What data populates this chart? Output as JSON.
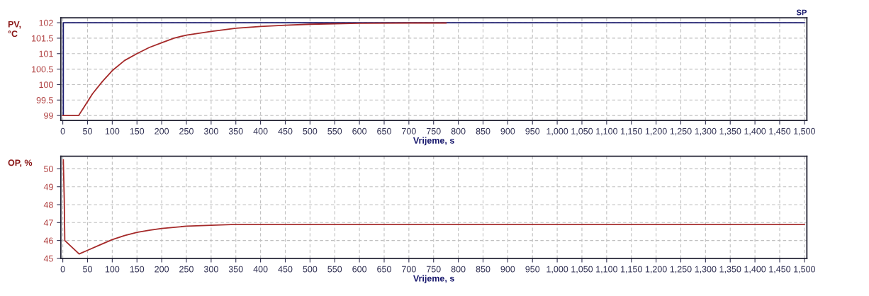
{
  "chart_data": [
    {
      "type": "line",
      "ylabel": "PV,\n°C",
      "xlabel": "Vrijeme, s",
      "xlim": [
        -4,
        1505
      ],
      "ylim": [
        98.84,
        102.16
      ],
      "xticks": [
        0,
        50,
        100,
        150,
        200,
        250,
        300,
        350,
        400,
        450,
        500,
        550,
        600,
        650,
        700,
        750,
        800,
        850,
        900,
        950,
        {
          "value": 1000,
          "label": "1,000"
        },
        {
          "value": 1050,
          "label": "1,050"
        },
        {
          "value": 1100,
          "label": "1,100"
        },
        {
          "value": 1150,
          "label": "1,150"
        },
        {
          "value": 1200,
          "label": "1,200"
        },
        {
          "value": 1250,
          "label": "1,250"
        },
        {
          "value": 1300,
          "label": "1,300"
        },
        {
          "value": 1350,
          "label": "1,350"
        },
        {
          "value": 1400,
          "label": "1,400"
        },
        {
          "value": 1450,
          "label": "1,450"
        },
        {
          "value": 1500,
          "label": "1,500"
        }
      ],
      "yticks": [
        99,
        99.5,
        100,
        100.5,
        101,
        101.5,
        102
      ],
      "grid": true,
      "marker": "none",
      "line_style": "solid",
      "series": [
        {
          "name": "SP",
          "color": "#1a1a6e",
          "x": [
            1,
            1,
            1500
          ],
          "values": [
            99,
            102,
            102
          ]
        },
        {
          "color": "#a52a2a",
          "x": [
            0,
            32,
            40,
            60,
            80,
            100,
            125,
            150,
            175,
            200,
            225,
            250,
            300,
            350,
            400,
            450,
            500,
            600,
            700,
            775
          ],
          "values": [
            99,
            99,
            99.2,
            99.7,
            100.1,
            100.45,
            100.78,
            101.0,
            101.2,
            101.35,
            101.5,
            101.6,
            101.72,
            101.82,
            101.88,
            101.92,
            101.95,
            101.98,
            101.99,
            101.99
          ]
        }
      ]
    },
    {
      "type": "line",
      "ylabel": "OP, %",
      "xlabel": "Vrijeme, s",
      "xlim": [
        -4,
        1505
      ],
      "ylim": [
        45,
        50.7
      ],
      "xticks": [
        0,
        50,
        100,
        150,
        200,
        250,
        300,
        350,
        400,
        450,
        500,
        550,
        600,
        650,
        700,
        750,
        800,
        850,
        900,
        950,
        {
          "value": 1000,
          "label": "1,000"
        },
        {
          "value": 1050,
          "label": "1,050"
        },
        {
          "value": 1100,
          "label": "1,100"
        },
        {
          "value": 1150,
          "label": "1,150"
        },
        {
          "value": 1200,
          "label": "1,200"
        },
        {
          "value": 1250,
          "label": "1,250"
        },
        {
          "value": 1300,
          "label": "1,300"
        },
        {
          "value": 1350,
          "label": "1,350"
        },
        {
          "value": 1400,
          "label": "1,400"
        },
        {
          "value": 1450,
          "label": "1,450"
        },
        {
          "value": 1500,
          "label": "1,500"
        }
      ],
      "yticks": [
        45,
        46,
        47,
        48,
        49,
        50
      ],
      "grid": true,
      "marker": "none",
      "line_style": "solid",
      "series": [
        {
          "color": "#a52a2a",
          "x": [
            1,
            1,
            3,
            4,
            33,
            50,
            75,
            100,
            125,
            150,
            175,
            200,
            250,
            300,
            350,
            500,
            1000,
            1500
          ],
          "values": [
            50.5,
            50.5,
            48.2,
            46.0,
            45.25,
            45.45,
            45.75,
            46.05,
            46.28,
            46.45,
            46.57,
            46.67,
            46.8,
            46.85,
            46.9,
            46.9,
            46.9,
            46.9
          ]
        }
      ]
    }
  ]
}
